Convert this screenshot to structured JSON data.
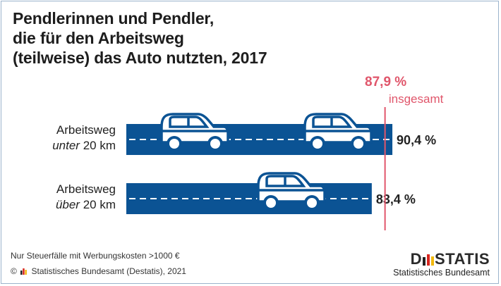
{
  "title_lines": [
    "Pendlerinnen und Pendler,",
    "die für den Arbeitsweg",
    "(teilweise) das Auto nutzten, 2017"
  ],
  "chart_data": {
    "type": "bar",
    "orientation": "horizontal",
    "categories": [
      {
        "line1": "Arbeitsweg",
        "line2_italic": "unter",
        "line2_rest": " 20 km"
      },
      {
        "line1": "Arbeitsweg",
        "line2_italic": "über",
        "line2_rest": " 20 km"
      }
    ],
    "values": [
      90.4,
      83.4
    ],
    "value_labels": [
      "90,4 %",
      "83,4 %"
    ],
    "reference": {
      "value": 87.9,
      "label_value": "87,9 %",
      "label_text": "insgesamt"
    },
    "colors": {
      "bar": "#0b5394",
      "reference": "#e0566b",
      "lane": "#ffffff"
    }
  },
  "footnote": "Nur Steuerfälle mit Werbungskosten >1000 €",
  "source": "Statistisches Bundesamt (Destatis), 2021",
  "copyright_symbol": "©",
  "brand": {
    "word_start": "D",
    "word_end": "STATIS",
    "subtitle": "Statistisches Bundesamt"
  }
}
